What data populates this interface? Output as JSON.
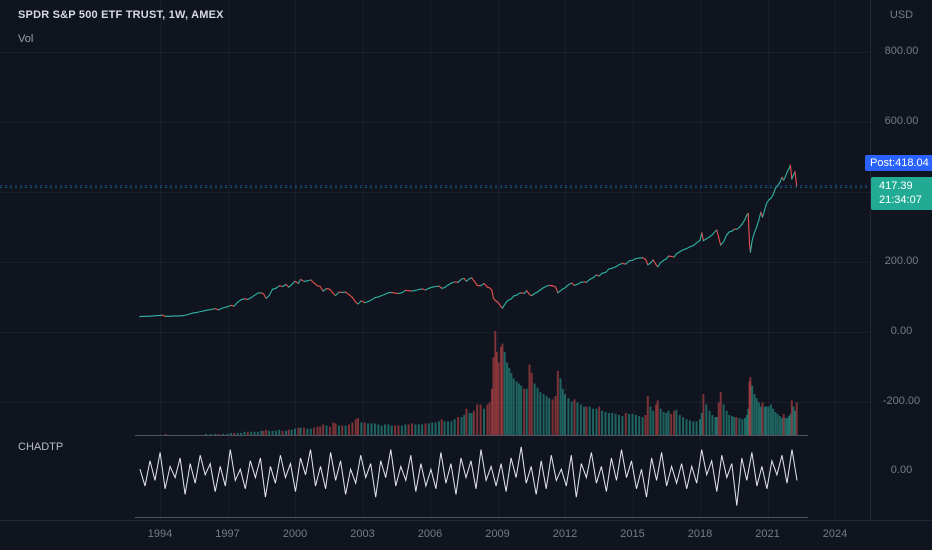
{
  "legend": {
    "title": "SPDR S&P 500 ETF TRUST, 1W, AMEX",
    "vol_label": "Vol",
    "chadtp_label": "CHADTP"
  },
  "axis": {
    "currency": "USD",
    "osc_zero_label": "0.00"
  },
  "badges": {
    "post_label": "Post:",
    "post_price": "418.04",
    "last_price": "417.39",
    "countdown": "21:34:07"
  },
  "colors": {
    "background": "#0f141f",
    "accent_blue": "#2962ff",
    "teal": "#22ab94",
    "up": "#2fb3a2",
    "down": "#e8524f",
    "vol_up": "rgba(47,179,162,0.5)",
    "vol_down": "rgba(232,82,79,0.5)",
    "grid": "rgba(140,152,176,0.08)",
    "separator": "#50535e",
    "axis_text": "#787b86",
    "oscillator_line": "#e6e8ec"
  },
  "chart_data": {
    "type": "line",
    "title": "SPDR S&P 500 ETF TRUST, 1W, AMEX",
    "interval": "1W",
    "exchange": "AMEX",
    "currency": "USD",
    "last_price": 417.39,
    "post_market_price": 418.04,
    "countdown": "21:34:07",
    "legend_position": "top-left",
    "grid": "on",
    "x_axis": {
      "ticks": [
        1994,
        1997,
        2000,
        2003,
        2006,
        2009,
        2012,
        2015,
        2018,
        2021,
        2024
      ],
      "range": [
        1992.8,
        2024.6
      ]
    },
    "y_axis": {
      "ticks": [
        {
          "value": 800,
          "label": "800.00"
        },
        {
          "value": 600,
          "label": "600.00"
        },
        {
          "value": 400,
          "label": ""
        },
        {
          "value": 200,
          "label": "200.00"
        },
        {
          "value": 0,
          "label": "0.00"
        },
        {
          "value": -200,
          "label": "-200.00"
        }
      ],
      "range": [
        -290,
        840
      ]
    },
    "volume_unit": "relative (0-100, axis unlabeled)",
    "price_volume_points": [
      [
        1993.1,
        44,
        1
      ],
      [
        1993.3,
        45,
        1
      ],
      [
        1993.5,
        45,
        1
      ],
      [
        1993.7,
        46,
        1
      ],
      [
        1993.9,
        47,
        1
      ],
      [
        1994.1,
        48,
        1
      ],
      [
        1994.25,
        45,
        2
      ],
      [
        1994.45,
        45,
        1
      ],
      [
        1994.65,
        46,
        1
      ],
      [
        1994.85,
        46,
        1
      ],
      [
        1995.05,
        47,
        1
      ],
      [
        1995.25,
        50,
        1
      ],
      [
        1995.45,
        54,
        1
      ],
      [
        1995.65,
        56,
        1
      ],
      [
        1995.85,
        59,
        1
      ],
      [
        1996.05,
        62,
        2
      ],
      [
        1996.25,
        64,
        2
      ],
      [
        1996.45,
        67,
        2
      ],
      [
        1996.6,
        63,
        2
      ],
      [
        1996.8,
        69,
        2
      ],
      [
        1997.0,
        72,
        2
      ],
      [
        1997.15,
        76,
        3
      ],
      [
        1997.3,
        74,
        3
      ],
      [
        1997.45,
        85,
        3
      ],
      [
        1997.6,
        92,
        3
      ],
      [
        1997.75,
        95,
        4
      ],
      [
        1997.9,
        93,
        4
      ],
      [
        1998.05,
        98,
        4
      ],
      [
        1998.2,
        105,
        4
      ],
      [
        1998.35,
        111,
        4
      ],
      [
        1998.5,
        112,
        5
      ],
      [
        1998.6,
        109,
        5
      ],
      [
        1998.72,
        96,
        6
      ],
      [
        1998.85,
        104,
        5
      ],
      [
        1999.0,
        122,
        5
      ],
      [
        1999.15,
        125,
        5
      ],
      [
        1999.3,
        132,
        6
      ],
      [
        1999.45,
        130,
        5
      ],
      [
        1999.6,
        136,
        5
      ],
      [
        1999.72,
        128,
        6
      ],
      [
        1999.85,
        135,
        6
      ],
      [
        2000.0,
        145,
        7
      ],
      [
        2000.15,
        139,
        8
      ],
      [
        2000.25,
        150,
        8
      ],
      [
        2000.4,
        145,
        8
      ],
      [
        2000.55,
        146,
        7
      ],
      [
        2000.7,
        149,
        7
      ],
      [
        2000.85,
        140,
        8
      ],
      [
        2001.0,
        132,
        9
      ],
      [
        2001.12,
        130,
        9
      ],
      [
        2001.25,
        117,
        11
      ],
      [
        2001.4,
        124,
        10
      ],
      [
        2001.55,
        122,
        9
      ],
      [
        2001.7,
        110,
        13
      ],
      [
        2001.8,
        104,
        12
      ],
      [
        2001.95,
        114,
        10
      ],
      [
        2002.1,
        113,
        10
      ],
      [
        2002.25,
        114,
        10
      ],
      [
        2002.4,
        107,
        11
      ],
      [
        2002.55,
        99,
        13
      ],
      [
        2002.7,
        85,
        16
      ],
      [
        2002.8,
        80,
        17
      ],
      [
        2002.95,
        89,
        13
      ],
      [
        2003.1,
        84,
        13
      ],
      [
        2003.25,
        87,
        12
      ],
      [
        2003.4,
        92,
        12
      ],
      [
        2003.55,
        98,
        12
      ],
      [
        2003.7,
        100,
        11
      ],
      [
        2003.85,
        104,
        10
      ],
      [
        2004.0,
        108,
        11
      ],
      [
        2004.15,
        112,
        11
      ],
      [
        2004.3,
        113,
        10
      ],
      [
        2004.45,
        111,
        10
      ],
      [
        2004.6,
        110,
        10
      ],
      [
        2004.75,
        112,
        10
      ],
      [
        2004.9,
        119,
        11
      ],
      [
        2005.05,
        118,
        11
      ],
      [
        2005.2,
        117,
        12
      ],
      [
        2005.35,
        119,
        11
      ],
      [
        2005.5,
        121,
        11
      ],
      [
        2005.65,
        123,
        11
      ],
      [
        2005.8,
        120,
        12
      ],
      [
        2005.95,
        125,
        12
      ],
      [
        2006.1,
        128,
        13
      ],
      [
        2006.25,
        130,
        13
      ],
      [
        2006.4,
        131,
        14
      ],
      [
        2006.52,
        125,
        16
      ],
      [
        2006.65,
        127,
        14
      ],
      [
        2006.8,
        134,
        14
      ],
      [
        2006.95,
        140,
        14
      ],
      [
        2007.1,
        143,
        16
      ],
      [
        2007.25,
        142,
        18
      ],
      [
        2007.4,
        151,
        18
      ],
      [
        2007.52,
        153,
        20
      ],
      [
        2007.62,
        145,
        26
      ],
      [
        2007.75,
        152,
        22
      ],
      [
        2007.85,
        155,
        22
      ],
      [
        2007.95,
        147,
        24
      ],
      [
        2008.1,
        133,
        30
      ],
      [
        2008.25,
        132,
        30
      ],
      [
        2008.4,
        139,
        26
      ],
      [
        2008.55,
        128,
        30
      ],
      [
        2008.65,
        126,
        32
      ],
      [
        2008.75,
        120,
        45
      ],
      [
        2008.82,
        97,
        75
      ],
      [
        2008.9,
        90,
        100
      ],
      [
        2008.97,
        87,
        80
      ],
      [
        2009.05,
        83,
        70
      ],
      [
        2009.15,
        73,
        85
      ],
      [
        2009.22,
        68,
        88
      ],
      [
        2009.32,
        79,
        80
      ],
      [
        2009.42,
        88,
        70
      ],
      [
        2009.52,
        92,
        65
      ],
      [
        2009.62,
        95,
        60
      ],
      [
        2009.72,
        103,
        55
      ],
      [
        2009.85,
        105,
        52
      ],
      [
        2009.95,
        110,
        50
      ],
      [
        2010.05,
        112,
        48
      ],
      [
        2010.18,
        110,
        45
      ],
      [
        2010.3,
        118,
        45
      ],
      [
        2010.42,
        107,
        68
      ],
      [
        2010.52,
        104,
        60
      ],
      [
        2010.65,
        110,
        50
      ],
      [
        2010.78,
        114,
        46
      ],
      [
        2010.9,
        120,
        42
      ],
      [
        2011.05,
        127,
        40
      ],
      [
        2011.18,
        131,
        38
      ],
      [
        2011.3,
        133,
        36
      ],
      [
        2011.45,
        132,
        35
      ],
      [
        2011.58,
        129,
        38
      ],
      [
        2011.68,
        112,
        62
      ],
      [
        2011.8,
        118,
        55
      ],
      [
        2011.9,
        123,
        45
      ],
      [
        2012.0,
        126,
        40
      ],
      [
        2012.15,
        135,
        36
      ],
      [
        2012.3,
        140,
        33
      ],
      [
        2012.42,
        133,
        35
      ],
      [
        2012.55,
        136,
        32
      ],
      [
        2012.7,
        142,
        30
      ],
      [
        2012.85,
        143,
        28
      ],
      [
        2012.95,
        142,
        28
      ],
      [
        2013.1,
        150,
        28
      ],
      [
        2013.25,
        155,
        26
      ],
      [
        2013.4,
        163,
        26
      ],
      [
        2013.52,
        160,
        28
      ],
      [
        2013.65,
        168,
        24
      ],
      [
        2013.8,
        170,
        23
      ],
      [
        2013.95,
        180,
        22
      ],
      [
        2014.1,
        182,
        22
      ],
      [
        2014.25,
        186,
        21
      ],
      [
        2014.4,
        192,
        20
      ],
      [
        2014.55,
        196,
        19
      ],
      [
        2014.7,
        194,
        22
      ],
      [
        2014.85,
        203,
        21
      ],
      [
        2015.0,
        205,
        21
      ],
      [
        2015.15,
        210,
        20
      ],
      [
        2015.3,
        211,
        19
      ],
      [
        2015.45,
        212,
        18
      ],
      [
        2015.58,
        208,
        20
      ],
      [
        2015.68,
        192,
        38
      ],
      [
        2015.8,
        197,
        28
      ],
      [
        2015.92,
        206,
        24
      ],
      [
        2016.05,
        192,
        30
      ],
      [
        2016.12,
        186,
        34
      ],
      [
        2016.25,
        198,
        26
      ],
      [
        2016.38,
        205,
        23
      ],
      [
        2016.5,
        209,
        22
      ],
      [
        2016.6,
        217,
        24
      ],
      [
        2016.72,
        216,
        21
      ],
      [
        2016.85,
        214,
        24
      ],
      [
        2016.95,
        223,
        25
      ],
      [
        2017.1,
        229,
        20
      ],
      [
        2017.25,
        235,
        18
      ],
      [
        2017.4,
        238,
        16
      ],
      [
        2017.55,
        243,
        15
      ],
      [
        2017.7,
        247,
        14
      ],
      [
        2017.85,
        255,
        14
      ],
      [
        2018.0,
        262,
        16
      ],
      [
        2018.08,
        283,
        22
      ],
      [
        2018.15,
        261,
        40
      ],
      [
        2018.28,
        266,
        30
      ],
      [
        2018.42,
        272,
        24
      ],
      [
        2018.55,
        278,
        20
      ],
      [
        2018.68,
        288,
        18
      ],
      [
        2018.75,
        291,
        18
      ],
      [
        2018.83,
        270,
        32
      ],
      [
        2018.92,
        248,
        42
      ],
      [
        2019.05,
        258,
        30
      ],
      [
        2019.18,
        277,
        24
      ],
      [
        2019.3,
        286,
        20
      ],
      [
        2019.42,
        288,
        19
      ],
      [
        2019.52,
        294,
        18
      ],
      [
        2019.62,
        293,
        18
      ],
      [
        2019.75,
        299,
        17
      ],
      [
        2019.88,
        309,
        16
      ],
      [
        2020.0,
        322,
        17
      ],
      [
        2020.08,
        334,
        20
      ],
      [
        2020.14,
        339,
        26
      ],
      [
        2020.2,
        252,
        52
      ],
      [
        2020.24,
        228,
        56
      ],
      [
        2020.32,
        262,
        48
      ],
      [
        2020.42,
        285,
        40
      ],
      [
        2020.52,
        300,
        36
      ],
      [
        2020.62,
        321,
        32
      ],
      [
        2020.7,
        342,
        28
      ],
      [
        2020.78,
        328,
        32
      ],
      [
        2020.88,
        350,
        28
      ],
      [
        2020.95,
        366,
        28
      ],
      [
        2021.05,
        377,
        28
      ],
      [
        2021.15,
        382,
        30
      ],
      [
        2021.25,
        392,
        26
      ],
      [
        2021.35,
        411,
        23
      ],
      [
        2021.45,
        417,
        21
      ],
      [
        2021.55,
        428,
        19
      ],
      [
        2021.65,
        442,
        17
      ],
      [
        2021.72,
        434,
        21
      ],
      [
        2021.8,
        445,
        17
      ],
      [
        2021.88,
        458,
        17
      ],
      [
        2021.95,
        466,
        19
      ],
      [
        2022.02,
        477,
        21
      ],
      [
        2022.08,
        437,
        34
      ],
      [
        2022.15,
        448,
        28
      ],
      [
        2022.22,
        458,
        24
      ],
      [
        2022.3,
        417,
        32
      ]
    ],
    "oscillator": {
      "name": "CHADTP",
      "zero_label": "0.00",
      "values": [
        0.1,
        -0.5,
        0.4,
        -0.3,
        0.7,
        -0.6,
        0.2,
        -0.2,
        0.5,
        -0.8,
        0.3,
        -0.4,
        0.6,
        -0.1,
        0.3,
        -0.7,
        0.2,
        -0.5,
        0.8,
        -0.3,
        0.1,
        -0.6,
        0.4,
        -0.2,
        0.5,
        -0.9,
        0.2,
        -0.4,
        0.6,
        -0.2,
        0.3,
        -0.7,
        0.5,
        -0.1,
        0.8,
        -0.5,
        0.2,
        -0.6,
        0.7,
        -0.3,
        0.4,
        -0.8,
        0.1,
        -0.4,
        0.6,
        -0.2,
        0.3,
        -0.9,
        0.4,
        -0.2,
        0.8,
        -0.5,
        0.2,
        -0.3,
        0.6,
        -0.7,
        0.3,
        -0.5,
        0.1,
        -0.6,
        0.7,
        -0.4,
        0.3,
        -0.8,
        0.5,
        -0.2,
        0.4,
        -0.6,
        0.8,
        -0.3,
        0.2,
        -0.5,
        0.3,
        -0.7,
        0.5,
        -0.2,
        0.9,
        -0.4,
        0.2,
        -0.8,
        0.4,
        -0.6,
        0.6,
        -0.3,
        0.1,
        -0.5,
        0.6,
        -0.9,
        0.3,
        -0.2,
        0.7,
        -0.4,
        0.2,
        -0.7,
        0.5,
        -0.3,
        0.8,
        -0.2,
        0.4,
        -0.6,
        0.1,
        -0.9,
        0.5,
        -0.3,
        0.7,
        -0.5,
        0.2,
        -0.4,
        0.3,
        -0.6,
        0.2,
        -0.4,
        0.8,
        -0.1,
        0.4,
        -0.7,
        0.6,
        -0.2,
        0.3,
        -1.2,
        0.5,
        -0.3,
        0.7,
        -0.5,
        0.2,
        -0.6,
        0.4,
        -0.1,
        0.6,
        -0.4,
        0.8,
        -0.3
      ]
    }
  }
}
